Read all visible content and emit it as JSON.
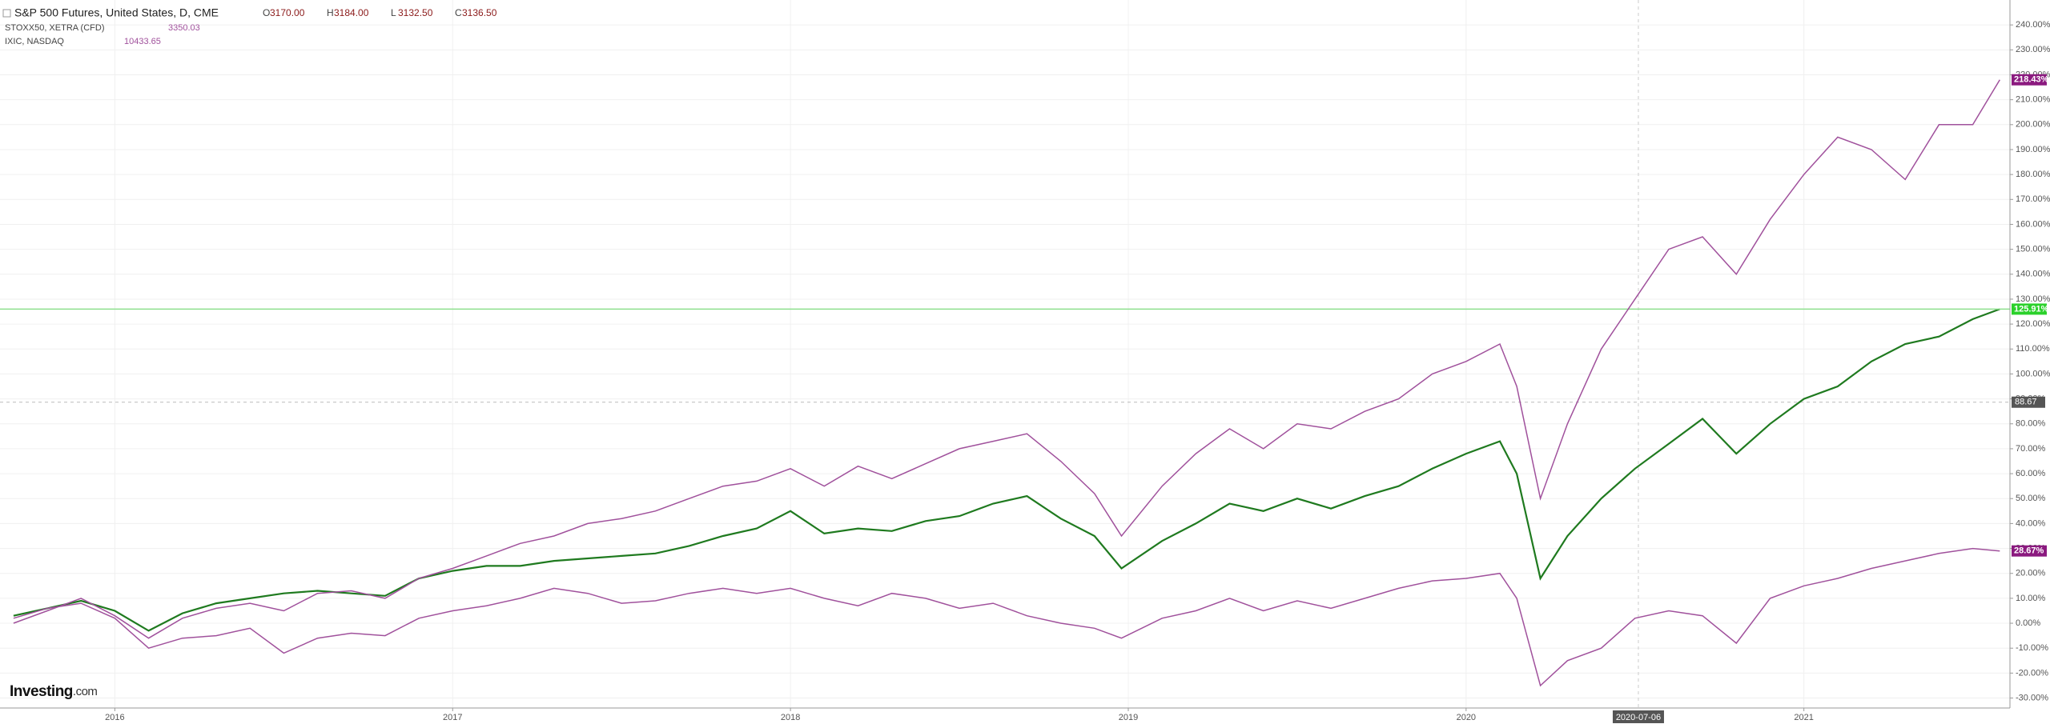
{
  "chart_data": {
    "type": "line",
    "x": [
      2015.7,
      2015.8,
      2015.9,
      2016.0,
      2016.1,
      2016.2,
      2016.3,
      2016.4,
      2016.5,
      2016.6,
      2016.7,
      2016.8,
      2016.9,
      2017.0,
      2017.1,
      2017.2,
      2017.3,
      2017.4,
      2017.5,
      2017.6,
      2017.7,
      2017.8,
      2017.9,
      2018.0,
      2018.1,
      2018.2,
      2018.3,
      2018.4,
      2018.5,
      2018.6,
      2018.7,
      2018.8,
      2018.9,
      2018.98,
      2019.1,
      2019.2,
      2019.3,
      2019.4,
      2019.5,
      2019.6,
      2019.7,
      2019.8,
      2019.9,
      2020.0,
      2020.1,
      2020.15,
      2020.22,
      2020.3,
      2020.4,
      2020.5,
      2020.6,
      2020.7,
      2020.8,
      2020.9,
      2021.0,
      2021.1,
      2021.2,
      2021.3,
      2021.4,
      2021.5,
      2021.58
    ],
    "series": [
      {
        "name": "S&P 500 Futures, United States, D, CME",
        "color": "#1f7a1f",
        "last_label": "125.91%",
        "label_color": "#2bd12b",
        "level_color": "#8ee08e",
        "ohlc": [
          {
            "label": "O",
            "value": "3170.00"
          },
          {
            "label": "H",
            "value": "3184.00"
          },
          {
            "label": "L",
            "value": "3132.50"
          },
          {
            "label": "C",
            "value": "3136.50"
          }
        ],
        "values": [
          3,
          6,
          9,
          5,
          -3,
          4,
          8,
          10,
          12,
          13,
          12,
          11,
          18,
          21,
          23,
          23,
          25,
          26,
          27,
          28,
          31,
          35,
          38,
          45,
          36,
          38,
          37,
          41,
          43,
          48,
          51,
          42,
          35,
          22,
          33,
          40,
          48,
          45,
          50,
          46,
          51,
          55,
          62,
          68,
          73,
          60,
          18,
          35,
          50,
          62,
          72,
          82,
          68,
          80,
          90,
          95,
          105,
          112,
          115,
          122,
          126
        ]
      },
      {
        "name": "STOXX50, XETRA (CFD)",
        "color": "#a0519c",
        "last_label": "28.67%",
        "label_color": "#8b1a7f",
        "price": "3350.03",
        "values": [
          2,
          6,
          8,
          2,
          -10,
          -6,
          -5,
          -2,
          -12,
          -6,
          -4,
          -5,
          2,
          5,
          7,
          10,
          14,
          12,
          8,
          9,
          12,
          14,
          12,
          14,
          10,
          7,
          12,
          10,
          6,
          8,
          3,
          0,
          -2,
          -6,
          2,
          5,
          10,
          5,
          9,
          6,
          10,
          14,
          17,
          18,
          20,
          10,
          -25,
          -15,
          -10,
          2,
          5,
          3,
          -8,
          10,
          15,
          18,
          22,
          25,
          28,
          30,
          29
        ]
      },
      {
        "name": "IXIC, NASDAQ",
        "color": "#a0519c",
        "last_label": "218.43%",
        "label_color": "#8b1a7f",
        "price": "10433.65",
        "values": [
          0,
          5,
          10,
          3,
          -6,
          2,
          6,
          8,
          5,
          12,
          13,
          10,
          18,
          22,
          27,
          32,
          35,
          40,
          42,
          45,
          50,
          55,
          57,
          62,
          55,
          63,
          58,
          64,
          70,
          73,
          76,
          65,
          52,
          35,
          55,
          68,
          78,
          70,
          80,
          78,
          85,
          90,
          100,
          105,
          112,
          95,
          50,
          80,
          110,
          130,
          150,
          155,
          140,
          162,
          180,
          195,
          190,
          178,
          200,
          200,
          218
        ]
      }
    ],
    "xlim": [
      2015.66,
      2021.61
    ],
    "xticks": [
      2016,
      2017,
      2018,
      2019,
      2020,
      2021
    ],
    "ylim": [
      -34,
      250
    ],
    "yticks": [
      {
        "value": -30,
        "label": "-30.00%"
      },
      {
        "value": -20,
        "label": "-20.00%"
      },
      {
        "value": -10,
        "label": "-10.00%"
      },
      {
        "value": 0,
        "label": "0.00%"
      },
      {
        "value": 10,
        "label": "10.00%"
      },
      {
        "value": 20,
        "label": "20.00%"
      },
      {
        "value": 30,
        "label": "30.00%"
      },
      {
        "value": 40,
        "label": "40.00%"
      },
      {
        "value": 50,
        "label": "50.00%"
      },
      {
        "value": 60,
        "label": "60.00%"
      },
      {
        "value": 70,
        "label": "70.00%"
      },
      {
        "value": 80,
        "label": "80.00%"
      },
      {
        "value": 90,
        "label": "90.00%"
      },
      {
        "value": 100,
        "label": "100.00%"
      },
      {
        "value": 110,
        "label": "110.00%"
      },
      {
        "value": 120,
        "label": "120.00%"
      },
      {
        "value": 130,
        "label": "130.00%"
      },
      {
        "value": 140,
        "label": "140.00%"
      },
      {
        "value": 150,
        "label": "150.00%"
      },
      {
        "value": 160,
        "label": "160.00%"
      },
      {
        "value": 170,
        "label": "170.00%"
      },
      {
        "value": 180,
        "label": "180.00%"
      },
      {
        "value": 190,
        "label": "190.00%"
      },
      {
        "value": 200,
        "label": "200.00%"
      },
      {
        "value": 210,
        "label": "210.00%"
      },
      {
        "value": 220,
        "label": "220.00%"
      },
      {
        "value": 230,
        "label": "230.00%"
      },
      {
        "value": 240,
        "label": "240.00%"
      }
    ],
    "grid": true,
    "price_line": {
      "value": 88.67,
      "label": "88.67"
    },
    "crosshair": {
      "value": 2020.51,
      "label": "2020-07-06"
    },
    "watermark": {
      "brand": "Investing",
      "suffix": ".com"
    }
  }
}
